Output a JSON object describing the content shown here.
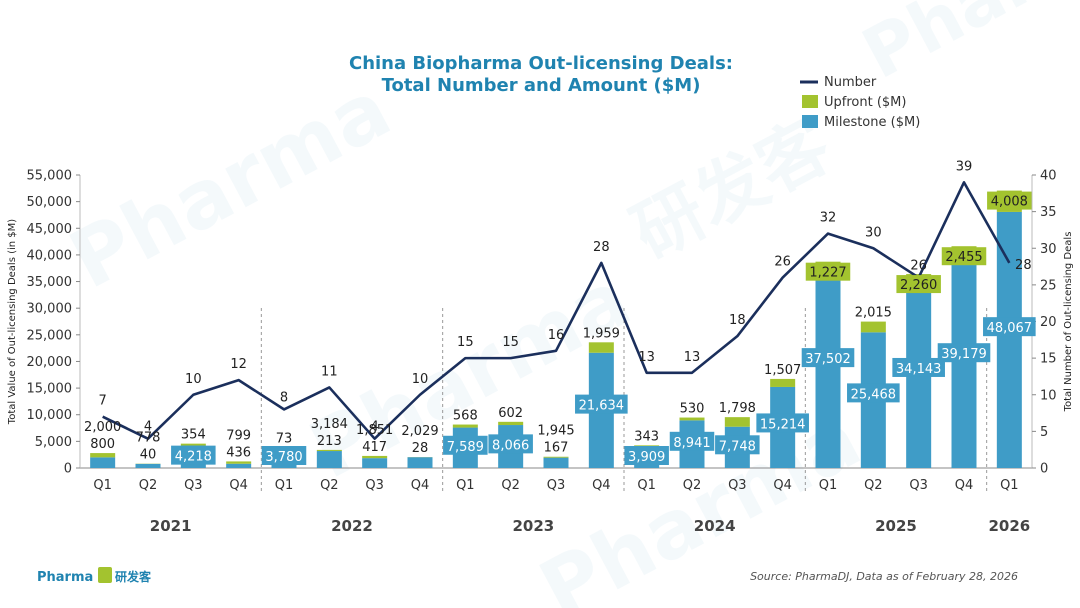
{
  "logo": {
    "name": "Pharma",
    "name_cn": "研发客"
  },
  "source": "Source: PharmaDJ, Data as of February 28, 2026",
  "watermark": {
    "text": "Pharma",
    "text_cn": "研发客"
  },
  "colors": {
    "milestone": "#3f9cc7",
    "upfront": "#a3c32f",
    "line": "#1b2f5c",
    "title": "#1f83b0"
  },
  "chart_data": {
    "type": "bar",
    "title_lines": [
      "China Biopharma Out-licensing Deals:",
      "Total Number and Amount ($M)"
    ],
    "ylabel": "Total Value of Out-licensing Deals (in $M)",
    "y2label": "Total Number of Out-licensing Deals",
    "ylim": [
      0,
      55000
    ],
    "yticks": [
      0,
      5000,
      10000,
      15000,
      20000,
      25000,
      30000,
      35000,
      40000,
      45000,
      50000,
      55000
    ],
    "ytick_labels": [
      "0",
      "5,000",
      "10,000",
      "15,000",
      "20,000",
      "25,000",
      "30,000",
      "35,000",
      "40,000",
      "45,000",
      "50,000",
      "55,000"
    ],
    "y2lim": [
      0,
      40
    ],
    "y2ticks": [
      0,
      5,
      10,
      15,
      20,
      25,
      30,
      35,
      40
    ],
    "legend": {
      "position": "top-right",
      "entries": [
        "Number",
        "Upfront ($M)",
        "Milestone ($M)"
      ]
    },
    "categories": [
      "Q1",
      "Q2",
      "Q3",
      "Q4",
      "Q1",
      "Q2",
      "Q3",
      "Q4",
      "Q1",
      "Q2",
      "Q3",
      "Q4",
      "Q1",
      "Q2",
      "Q3",
      "Q4",
      "Q1",
      "Q2",
      "Q3",
      "Q4",
      "Q1"
    ],
    "years": [
      {
        "label": "2021",
        "start": 0,
        "end": 3
      },
      {
        "label": "2022",
        "start": 4,
        "end": 7
      },
      {
        "label": "2023",
        "start": 8,
        "end": 11
      },
      {
        "label": "2024",
        "start": 12,
        "end": 15
      },
      {
        "label": "2025",
        "start": 16,
        "end": 19
      },
      {
        "label": "2026",
        "start": 20,
        "end": 20
      }
    ],
    "series": [
      {
        "name": "Milestone ($M)",
        "axis": "left",
        "values": [
          2000,
          778,
          4218,
          799,
          3780,
          3184,
          1851,
          2029,
          7589,
          8066,
          1945,
          21634,
          3909,
          8941,
          7748,
          15214,
          37502,
          25468,
          34143,
          39179,
          48067
        ],
        "labels": [
          "2,000",
          "778",
          "4,218",
          "799",
          "3,780",
          "3,184",
          "1,851",
          "2,029",
          "7,589",
          "8,066",
          "1,945",
          "21,634",
          "3,909",
          "8,941",
          "7,748",
          "15,214",
          "37,502",
          "25,468",
          "34,143",
          "39,179",
          "48,067"
        ]
      },
      {
        "name": "Upfront ($M)",
        "axis": "left",
        "values": [
          800,
          40,
          354,
          436,
          73,
          213,
          417,
          28,
          568,
          602,
          167,
          1959,
          343,
          530,
          1798,
          1507,
          1227,
          2015,
          2260,
          2455,
          4008
        ],
        "labels": [
          "800",
          "40",
          "354",
          "436",
          "73",
          "213",
          "417",
          "28",
          "568",
          "602",
          "167",
          "1,959",
          "343",
          "530",
          "1,798",
          "1,507",
          "1,227",
          "2,015",
          "2,260",
          "2,455",
          "4,008"
        ]
      },
      {
        "name": "Number",
        "axis": "right",
        "values": [
          7,
          4,
          10,
          12,
          8,
          11,
          4,
          10,
          15,
          15,
          16,
          28,
          13,
          13,
          18,
          26,
          32,
          30,
          26,
          39,
          28
        ],
        "labels": [
          "7",
          "4",
          "10",
          "12",
          "8",
          "11",
          "4",
          "10",
          "15",
          "15",
          "16",
          "28",
          "13",
          "13",
          "18",
          "26",
          "32",
          "30",
          "26",
          "39",
          "28"
        ]
      }
    ]
  }
}
